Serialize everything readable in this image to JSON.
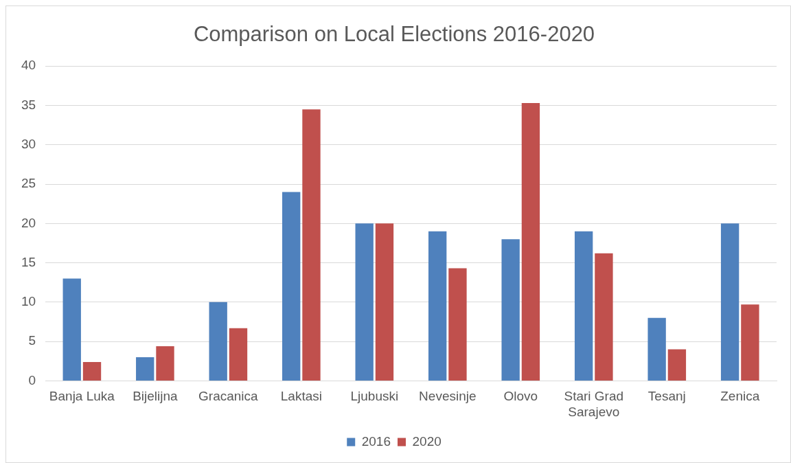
{
  "chart_data": {
    "type": "bar",
    "title": "Comparison on Local Elections 2016-2020",
    "categories": [
      "Banja Luka",
      "Bijelijna",
      "Gracanica",
      "Laktasi",
      "Ljubuski",
      "Nevesinje",
      "Olovo",
      "Stari Grad Sarajevo",
      "Tesanj",
      "Zenica"
    ],
    "series": [
      {
        "name": "2016",
        "color": "#4f81bd",
        "values": [
          13,
          3,
          10,
          24,
          20,
          19,
          18,
          19,
          8,
          20
        ]
      },
      {
        "name": "2020",
        "color": "#c0504d",
        "values": [
          2.4,
          4.4,
          6.7,
          34.5,
          20,
          14.3,
          35.3,
          16.2,
          4.0,
          9.7
        ]
      }
    ],
    "ylim": [
      0,
      40
    ],
    "yticks": [
      0,
      5,
      10,
      15,
      20,
      25,
      30,
      35,
      40
    ],
    "grid": "y",
    "legend": "bottom"
  }
}
